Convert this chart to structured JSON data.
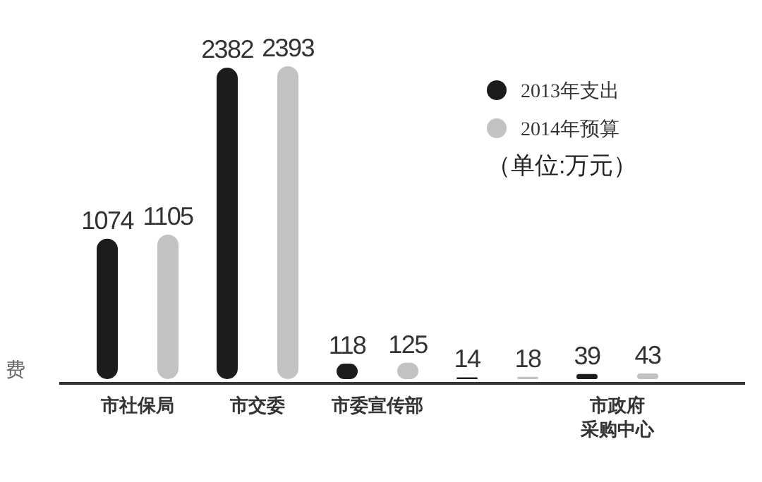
{
  "chart_data": {
    "type": "bar",
    "categories": [
      "市社保局",
      "市交委",
      "市委宣传部",
      null,
      "市政府采购中心"
    ],
    "series": [
      {
        "name": "2013年支出",
        "color": "#1c1c1c",
        "values": [
          1074,
          2382,
          118,
          14,
          39
        ]
      },
      {
        "name": "2014年预算",
        "color": "#c2c2c2",
        "values": [
          1105,
          2393,
          125,
          18,
          43
        ]
      }
    ],
    "data_labels": true,
    "legend": "top right",
    "annotations": [
      "（单位:万元）",
      "费"
    ]
  }
}
